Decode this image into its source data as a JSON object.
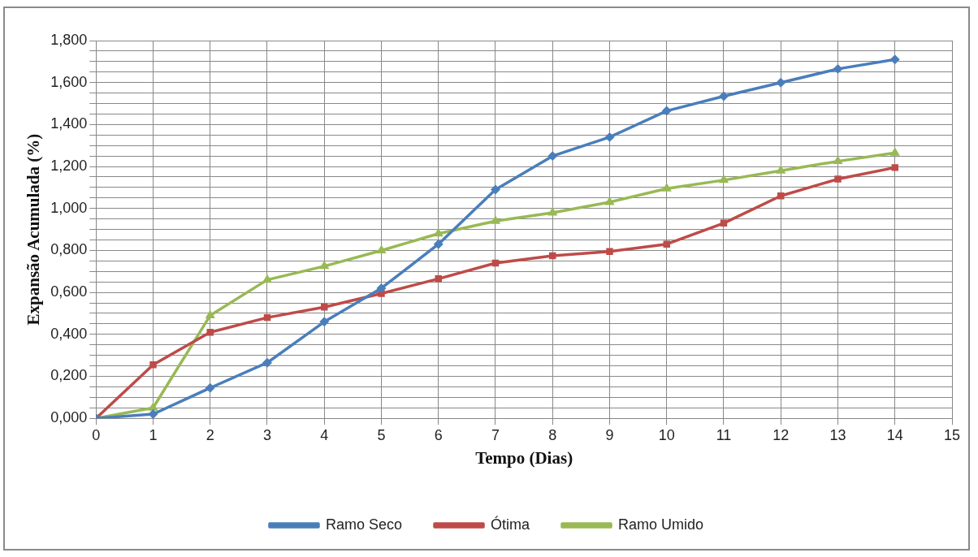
{
  "chart_data": {
    "type": "line",
    "xlabel": "Tempo (Dias)",
    "ylabel": "Expansão Acumulada (%)",
    "x": [
      0,
      1,
      2,
      3,
      4,
      5,
      6,
      7,
      8,
      9,
      10,
      11,
      12,
      13,
      14
    ],
    "xlim": [
      0,
      15
    ],
    "xticks": [
      0,
      1,
      2,
      3,
      4,
      5,
      6,
      7,
      8,
      9,
      10,
      11,
      12,
      13,
      14,
      15
    ],
    "ylim": [
      0,
      1.8
    ],
    "yticks": [
      {
        "value": 0,
        "label": "0,000"
      },
      {
        "value": 0.05,
        "label": null
      },
      {
        "value": 0.1,
        "label": null
      },
      {
        "value": 0.15,
        "label": null
      },
      {
        "value": 0.2,
        "label": "0,200"
      },
      {
        "value": 0.25,
        "label": null
      },
      {
        "value": 0.3,
        "label": null
      },
      {
        "value": 0.35,
        "label": null
      },
      {
        "value": 0.4,
        "label": "0,400"
      },
      {
        "value": 0.45,
        "label": null
      },
      {
        "value": 0.5,
        "label": null
      },
      {
        "value": 0.55,
        "label": null
      },
      {
        "value": 0.6,
        "label": "0,600"
      },
      {
        "value": 0.65,
        "label": null
      },
      {
        "value": 0.7,
        "label": null
      },
      {
        "value": 0.75,
        "label": null
      },
      {
        "value": 0.8,
        "label": "0,800"
      },
      {
        "value": 0.85,
        "label": null
      },
      {
        "value": 0.9,
        "label": null
      },
      {
        "value": 0.95,
        "label": null
      },
      {
        "value": 1.0,
        "label": "1,000"
      },
      {
        "value": 1.05,
        "label": null
      },
      {
        "value": 1.1,
        "label": null
      },
      {
        "value": 1.15,
        "label": null
      },
      {
        "value": 1.2,
        "label": "1,200"
      },
      {
        "value": 1.25,
        "label": null
      },
      {
        "value": 1.3,
        "label": null
      },
      {
        "value": 1.35,
        "label": null
      },
      {
        "value": 1.4,
        "label": "1,400"
      },
      {
        "value": 1.45,
        "label": null
      },
      {
        "value": 1.5,
        "label": null
      },
      {
        "value": 1.55,
        "label": null
      },
      {
        "value": 1.6,
        "label": "1,600"
      },
      {
        "value": 1.65,
        "label": null
      },
      {
        "value": 1.7,
        "label": null
      },
      {
        "value": 1.75,
        "label": null
      },
      {
        "value": 1.8,
        "label": "1,800"
      }
    ],
    "grid": true,
    "legend": "bottom",
    "line_style": "solid",
    "series": [
      {
        "name": "Ramo Seco",
        "color": "#4a7ebb",
        "marker": "diamond",
        "values": [
          0,
          0.02,
          0.145,
          0.265,
          0.46,
          0.62,
          0.83,
          1.09,
          1.25,
          1.34,
          1.465,
          1.535,
          1.6,
          1.665,
          1.71
        ]
      },
      {
        "name": "Ótima",
        "color": "#be4b48",
        "marker": "square",
        "values": [
          0,
          0.255,
          0.41,
          0.48,
          0.53,
          0.595,
          0.665,
          0.74,
          0.775,
          0.795,
          0.83,
          0.93,
          1.06,
          1.14,
          1.195
        ]
      },
      {
        "name": "Ramo Umido",
        "color": "#98b954",
        "marker": "triangle",
        "values": [
          0,
          0.05,
          0.49,
          0.66,
          0.725,
          0.8,
          0.88,
          0.94,
          0.98,
          1.03,
          1.095,
          1.135,
          1.18,
          1.225,
          1.265
        ]
      }
    ]
  }
}
